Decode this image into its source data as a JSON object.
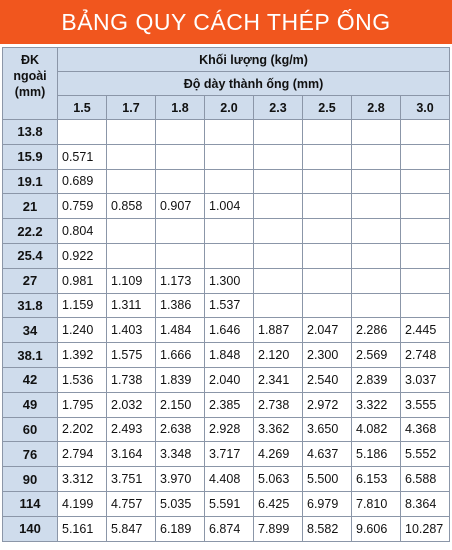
{
  "title": "BẢNG QUY CÁCH THÉP ỐNG",
  "colors": {
    "banner": "#f1561e",
    "header_bg": "#cfdcec",
    "border": "#8b96a8"
  },
  "headers": {
    "od_line1": "ĐK",
    "od_line2": "ngoài",
    "od_line3": "(mm)",
    "mass": "Khối lượng (kg/m)",
    "thickness": "Độ dày thành ống (mm)",
    "thicknesses": [
      "1.5",
      "1.7",
      "1.8",
      "2.0",
      "2.3",
      "2.5",
      "2.8",
      "3.0"
    ]
  },
  "rows": [
    {
      "od": "13.8",
      "values": [
        "",
        "",
        "",
        "",
        "",
        "",
        "",
        ""
      ]
    },
    {
      "od": "15.9",
      "values": [
        "0.571",
        "",
        "",
        "",
        "",
        "",
        "",
        ""
      ]
    },
    {
      "od": "19.1",
      "values": [
        "0.689",
        "",
        "",
        "",
        "",
        "",
        "",
        ""
      ]
    },
    {
      "od": "21",
      "values": [
        "0.759",
        "0.858",
        "0.907",
        "1.004",
        "",
        "",
        "",
        ""
      ]
    },
    {
      "od": "22.2",
      "values": [
        "0.804",
        "",
        "",
        "",
        "",
        "",
        "",
        ""
      ]
    },
    {
      "od": "25.4",
      "values": [
        "0.922",
        "",
        "",
        "",
        "",
        "",
        "",
        ""
      ]
    },
    {
      "od": "27",
      "values": [
        "0.981",
        "1.109",
        "1.173",
        "1.300",
        "",
        "",
        "",
        ""
      ]
    },
    {
      "od": "31.8",
      "values": [
        "1.159",
        "1.311",
        "1.386",
        "1.537",
        "",
        "",
        "",
        ""
      ]
    },
    {
      "od": "34",
      "values": [
        "1.240",
        "1.403",
        "1.484",
        "1.646",
        "1.887",
        "2.047",
        "2.286",
        "2.445"
      ]
    },
    {
      "od": "38.1",
      "values": [
        "1.392",
        "1.575",
        "1.666",
        "1.848",
        "2.120",
        "2.300",
        "2.569",
        "2.748"
      ]
    },
    {
      "od": "42",
      "values": [
        "1.536",
        "1.738",
        "1.839",
        "2.040",
        "2.341",
        "2.540",
        "2.839",
        "3.037"
      ]
    },
    {
      "od": "49",
      "values": [
        "1.795",
        "2.032",
        "2.150",
        "2.385",
        "2.738",
        "2.972",
        "3.322",
        "3.555"
      ]
    },
    {
      "od": "60",
      "values": [
        "2.202",
        "2.493",
        "2.638",
        "2.928",
        "3.362",
        "3.650",
        "4.082",
        "4.368"
      ]
    },
    {
      "od": "76",
      "values": [
        "2.794",
        "3.164",
        "3.348",
        "3.717",
        "4.269",
        "4.637",
        "5.186",
        "5.552"
      ]
    },
    {
      "od": "90",
      "values": [
        "3.312",
        "3.751",
        "3.970",
        "4.408",
        "5.063",
        "5.500",
        "6.153",
        "6.588"
      ]
    },
    {
      "od": "114",
      "values": [
        "4.199",
        "4.757",
        "5.035",
        "5.591",
        "6.425",
        "6.979",
        "7.810",
        "8.364"
      ]
    },
    {
      "od": "140",
      "values": [
        "5.161",
        "5.847",
        "6.189",
        "6.874",
        "7.899",
        "8.582",
        "9.606",
        "10.287"
      ]
    }
  ]
}
